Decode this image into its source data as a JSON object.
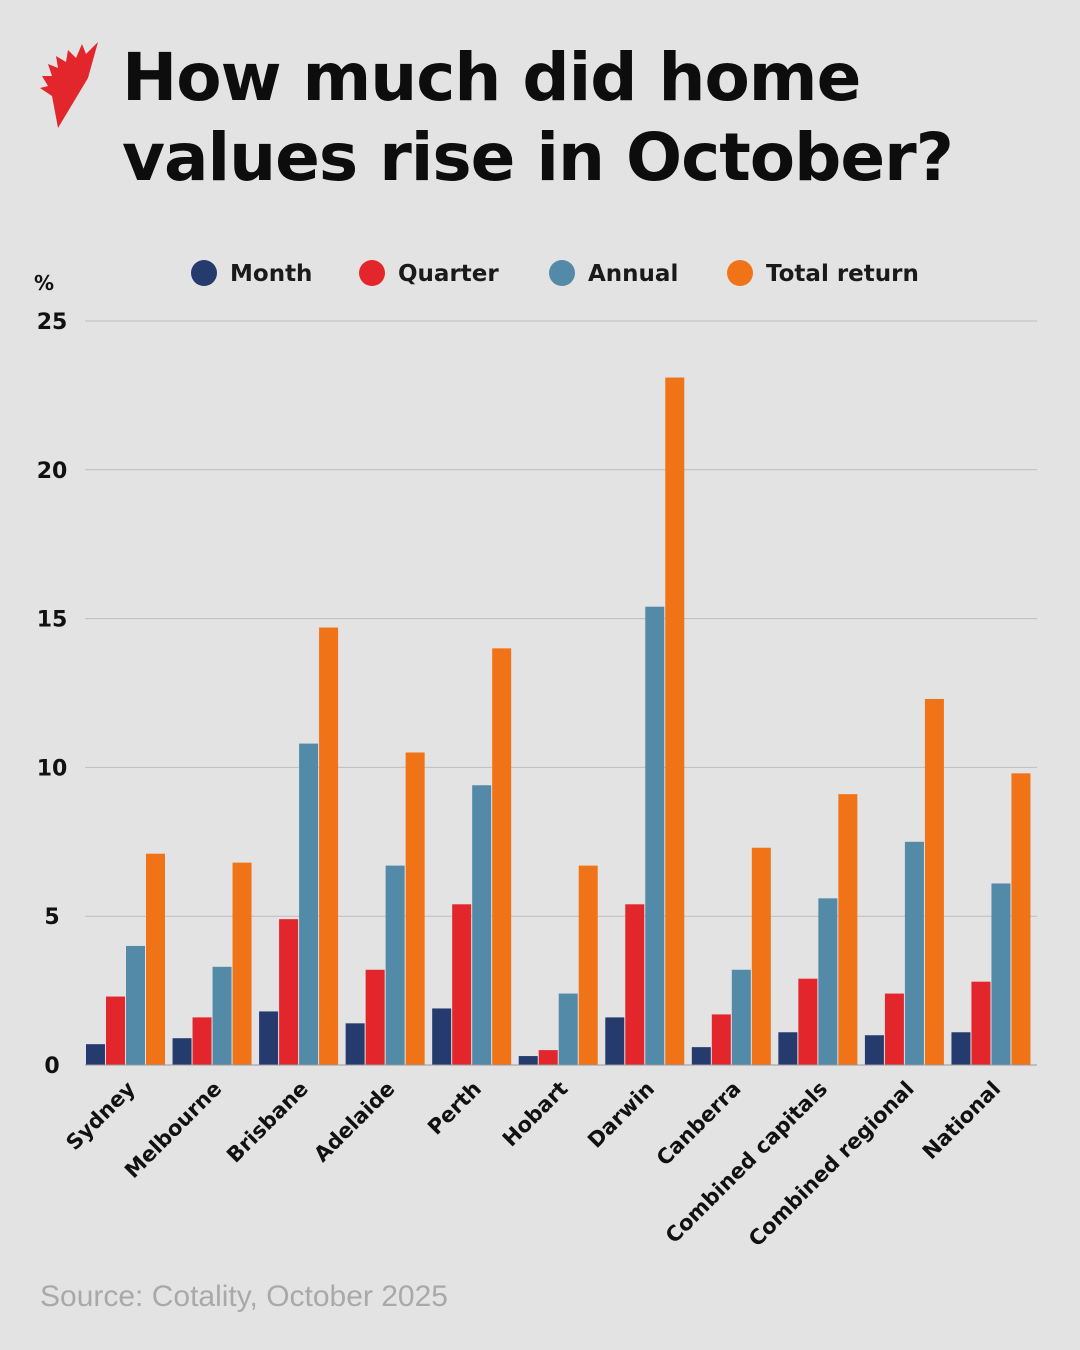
{
  "title": "How much did home values rise in October?",
  "source": "Source: Cotality, October 2025",
  "chart_data": {
    "type": "bar",
    "title": "How much did home values rise in October?",
    "ylabel": "%",
    "ylim": [
      0,
      25
    ],
    "yticks": [
      0,
      5,
      10,
      15,
      20,
      25
    ],
    "grid": true,
    "legend_position": "top",
    "categories": [
      "Sydney",
      "Melbourne",
      "Brisbane",
      "Adelaide",
      "Perth",
      "Hobart",
      "Darwin",
      "Canberra",
      "Combined capitals",
      "Combined regional",
      "National"
    ],
    "series": [
      {
        "name": "Month",
        "color": "#253b6e",
        "values": [
          0.7,
          0.9,
          1.8,
          1.4,
          1.9,
          0.3,
          1.6,
          0.6,
          1.1,
          1.0,
          1.1
        ]
      },
      {
        "name": "Quarter",
        "color": "#e2262b",
        "values": [
          2.3,
          1.6,
          4.9,
          3.2,
          5.4,
          0.5,
          5.4,
          1.7,
          2.9,
          2.4,
          2.8
        ]
      },
      {
        "name": "Annual",
        "color": "#528aa8",
        "values": [
          4.0,
          3.3,
          10.8,
          6.7,
          9.4,
          2.4,
          15.4,
          3.2,
          5.6,
          7.5,
          6.1
        ]
      },
      {
        "name": "Total return",
        "color": "#f07318",
        "values": [
          7.1,
          6.8,
          14.7,
          10.5,
          14.0,
          6.7,
          23.1,
          7.3,
          9.1,
          12.3,
          9.8
        ]
      }
    ]
  }
}
